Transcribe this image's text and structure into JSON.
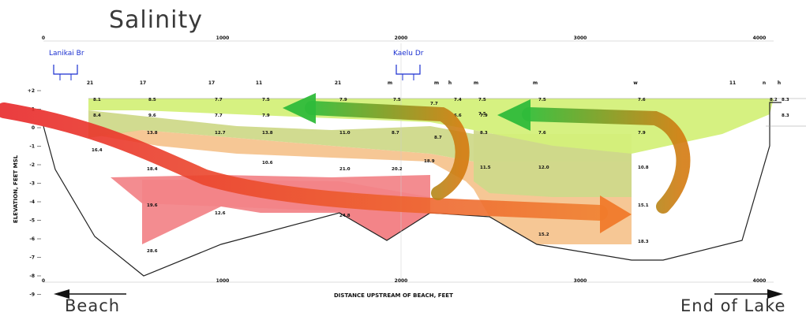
{
  "title": "Salinity",
  "x_axis": {
    "label": "DISTANCE UPSTREAM OF BEACH, FEET",
    "ticks": [
      "0",
      "1000",
      "2000",
      "3000",
      "4000"
    ]
  },
  "y_axis": {
    "label": "ELEVATION, FEET MSL",
    "ticks": [
      "+2",
      "1",
      "0",
      "-1",
      "-2",
      "-3",
      "-4",
      "-5",
      "-6",
      "-7",
      "-8",
      "-9"
    ]
  },
  "bridges": [
    {
      "label": "Lanikai Br"
    },
    {
      "label": "Kaelu Dr"
    }
  ],
  "bottom_labels": {
    "left": "Beach",
    "right": "End of Lake"
  },
  "colors": {
    "zone_top": "#d4f07a",
    "zone_upper_mid": "#cfd98a",
    "zone_mid": "#f5c48f",
    "zone_deep": "#f2868a",
    "zone_deepest": "#ef5a60",
    "arrow_in_start": "#e8282a",
    "arrow_in_end": "#f08030",
    "arrow_out_start": "#2fbb3a",
    "arrow_out_end": "#d47a10"
  },
  "station_labels": [
    "21",
    "17",
    "17",
    "11",
    "21",
    "m",
    "m",
    "h",
    "m",
    "m",
    "w",
    "11",
    "n",
    "h"
  ],
  "readings": [
    "8.1",
    "8.5",
    "7.7",
    "7.5",
    "7.9",
    "7.5",
    "7.7",
    "7.4",
    "7.5",
    "7.5",
    "7.6",
    "8.2",
    "8.3",
    "8.4",
    "9.6",
    "7.7",
    "7.9",
    "7.9",
    "6.6",
    "7.5",
    "8.3",
    "13.8",
    "12.7",
    "13.8",
    "11.0",
    "8.7",
    "8.7",
    "8.3",
    "7.6",
    "7.9",
    "16.4",
    "10.6",
    "18.9",
    "18.4",
    "21.0",
    "20.2",
    "11.5",
    "12.0",
    "10.8",
    "19.6",
    "12.6",
    "24.8",
    "15.1",
    "15.2",
    "18.3",
    "28.6"
  ]
}
